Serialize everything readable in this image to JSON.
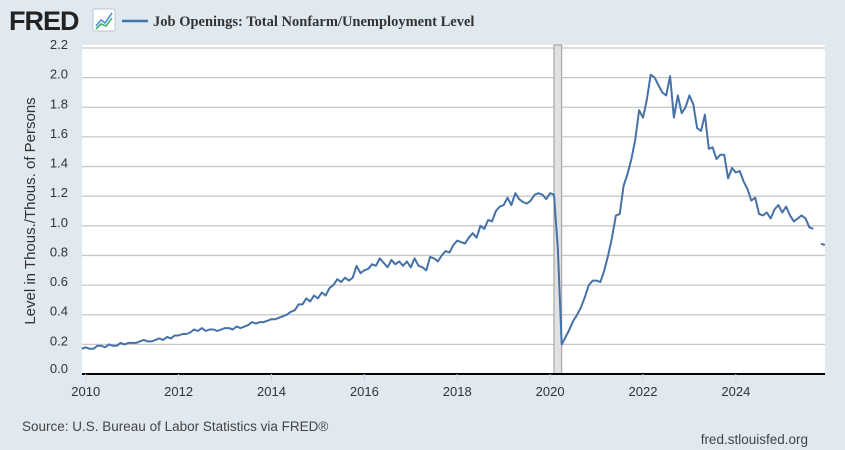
{
  "header": {
    "logo_text": "FRED",
    "logo_icon": "line-chart-icon"
  },
  "footer": {
    "source": "Source: U.S. Bureau of Labor Statistics via FRED®",
    "site": "fred.stlouisfed.org"
  },
  "colors": {
    "background": "#e1e9f0",
    "plot_background": "#ffffff",
    "series": "#4572a7",
    "grid": "#c8c8c8",
    "recession": "#e1e1e1"
  },
  "chart_data": {
    "type": "line",
    "title": "",
    "xlabel": "",
    "ylabel": "Level in Thous./Thous. of Persons",
    "xlim": [
      "2009-12",
      "2025-12"
    ],
    "ylim": [
      0,
      2.2
    ],
    "grid": true,
    "legend": "top-left",
    "x_ticks": [
      "2010",
      "2012",
      "2014",
      "2016",
      "2018",
      "2020",
      "2022",
      "2024"
    ],
    "y_ticks": [
      "0.0",
      "0.2",
      "0.4",
      "0.6",
      "0.8",
      "1.0",
      "1.2",
      "1.4",
      "1.6",
      "1.8",
      "2.0",
      "2.2"
    ],
    "recessions": [
      {
        "start": "2020-02",
        "end": "2020-04"
      }
    ],
    "series": [
      {
        "name": "Job Openings: Total Nonfarm/Unemployment Level",
        "frequency": "monthly",
        "values_by_year": {
          "2009": [
            null,
            null,
            null,
            null,
            null,
            null,
            null,
            null,
            null,
            null,
            null,
            0.17
          ],
          "2010": [
            0.18,
            0.17,
            0.17,
            0.19,
            0.19,
            0.18,
            0.2,
            0.19,
            0.19,
            0.21,
            0.2,
            0.21
          ],
          "2011": [
            0.21,
            0.21,
            0.22,
            0.23,
            0.22,
            0.22,
            0.23,
            0.24,
            0.23,
            0.25,
            0.24,
            0.26
          ],
          "2012": [
            0.26,
            0.27,
            0.27,
            0.28,
            0.3,
            0.29,
            0.31,
            0.29,
            0.3,
            0.3,
            0.29,
            0.3
          ],
          "2013": [
            0.31,
            0.31,
            0.3,
            0.32,
            0.31,
            0.32,
            0.33,
            0.35,
            0.34,
            0.35,
            0.35,
            0.36
          ],
          "2014": [
            0.37,
            0.37,
            0.38,
            0.39,
            0.4,
            0.42,
            0.43,
            0.47,
            0.47,
            0.51,
            0.49,
            0.53
          ],
          "2015": [
            0.51,
            0.55,
            0.53,
            0.58,
            0.6,
            0.64,
            0.62,
            0.65,
            0.63,
            0.65,
            0.73,
            0.68
          ],
          "2016": [
            0.7,
            0.71,
            0.74,
            0.73,
            0.78,
            0.75,
            0.72,
            0.77,
            0.74,
            0.76,
            0.73,
            0.76
          ],
          "2017": [
            0.72,
            0.78,
            0.73,
            0.72,
            0.7,
            0.79,
            0.78,
            0.76,
            0.8,
            0.83,
            0.82,
            0.87
          ],
          "2018": [
            0.9,
            0.89,
            0.88,
            0.92,
            0.95,
            0.92,
            1.0,
            0.98,
            1.04,
            1.03,
            1.1,
            1.13
          ],
          "2019": [
            1.14,
            1.19,
            1.14,
            1.22,
            1.18,
            1.16,
            1.15,
            1.17,
            1.21,
            1.22,
            1.21,
            1.18
          ],
          "2020": [
            1.22,
            1.21,
            0.85,
            0.2,
            0.25,
            0.3,
            0.36,
            0.4,
            0.45,
            0.52,
            0.6,
            0.63
          ],
          "2021": [
            0.63,
            0.62,
            0.7,
            0.8,
            0.92,
            1.07,
            1.08,
            1.27,
            1.35,
            1.45,
            1.58,
            1.78
          ],
          "2022": [
            1.73,
            1.85,
            2.02,
            2.0,
            1.95,
            1.9,
            1.88,
            2.01,
            1.73,
            1.88,
            1.76,
            1.8
          ],
          "2023": [
            1.88,
            1.82,
            1.66,
            1.64,
            1.75,
            1.52,
            1.53,
            1.45,
            1.48,
            1.48,
            1.32,
            1.39
          ],
          "2024": [
            1.36,
            1.37,
            1.3,
            1.25,
            1.17,
            1.19,
            1.08,
            1.07,
            1.09,
            1.05,
            1.11,
            1.14
          ],
          "2025": [
            1.09,
            1.13,
            1.07,
            1.03,
            1.05,
            1.07,
            1.05,
            0.99,
            0.98,
            null,
            0.88,
            0.87
          ]
        }
      }
    ]
  }
}
